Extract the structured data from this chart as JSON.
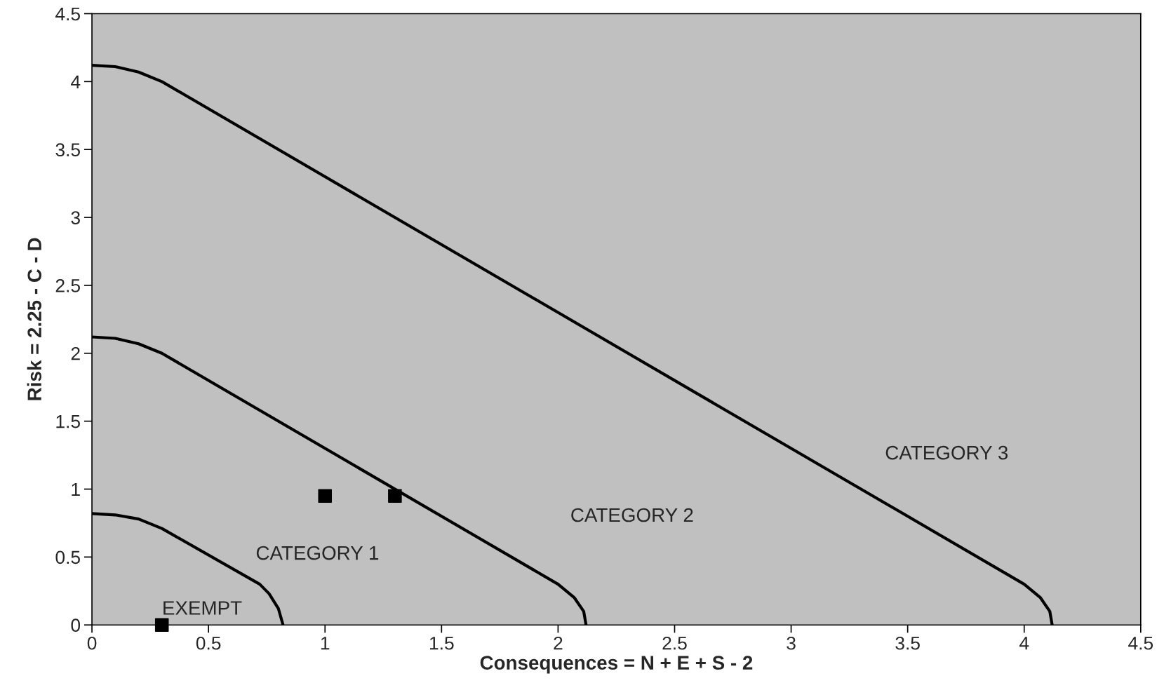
{
  "chart_data": {
    "type": "line",
    "xlabel": "Consequences = N + E + S - 2",
    "ylabel": "Risk = 2.25 - C - D",
    "xlim": [
      0,
      4.5
    ],
    "ylim": [
      0,
      4.5
    ],
    "xticks": [
      0,
      0.5,
      1,
      1.5,
      2,
      2.5,
      3,
      3.5,
      4,
      4.5
    ],
    "yticks": [
      0,
      0.5,
      1,
      1.5,
      2,
      2.5,
      3,
      3.5,
      4,
      4.5
    ],
    "grid": false,
    "legend": false,
    "series": [
      {
        "color": "#000000",
        "marker": "none",
        "x": [
          0,
          0.1,
          0.2,
          0.3,
          0.72,
          0.76,
          0.8,
          0.82
        ],
        "values": [
          0.82,
          0.81,
          0.78,
          0.71,
          0.3,
          0.23,
          0.12,
          0
        ]
      },
      {
        "color": "#000000",
        "marker": "none",
        "x": [
          0,
          0.1,
          0.2,
          0.3,
          2.0,
          2.07,
          2.11,
          2.12
        ],
        "values": [
          2.12,
          2.11,
          2.07,
          2.0,
          0.3,
          0.2,
          0.1,
          0
        ]
      },
      {
        "color": "#000000",
        "marker": "none",
        "x": [
          0,
          0.1,
          0.2,
          0.3,
          4.0,
          4.07,
          4.11,
          4.12
        ],
        "values": [
          4.12,
          4.11,
          4.07,
          4.0,
          0.3,
          0.2,
          0.1,
          0
        ]
      },
      {
        "type": "scatter",
        "color": "#000000",
        "marker": "square",
        "x": [
          0.3,
          1,
          1.3
        ],
        "values": [
          0,
          0.95,
          0.95
        ]
      }
    ],
    "annotations": [
      "EXEMPT",
      "CATEGORY 1",
      "CATEGORY 2",
      "CATEGORY 3"
    ]
  }
}
